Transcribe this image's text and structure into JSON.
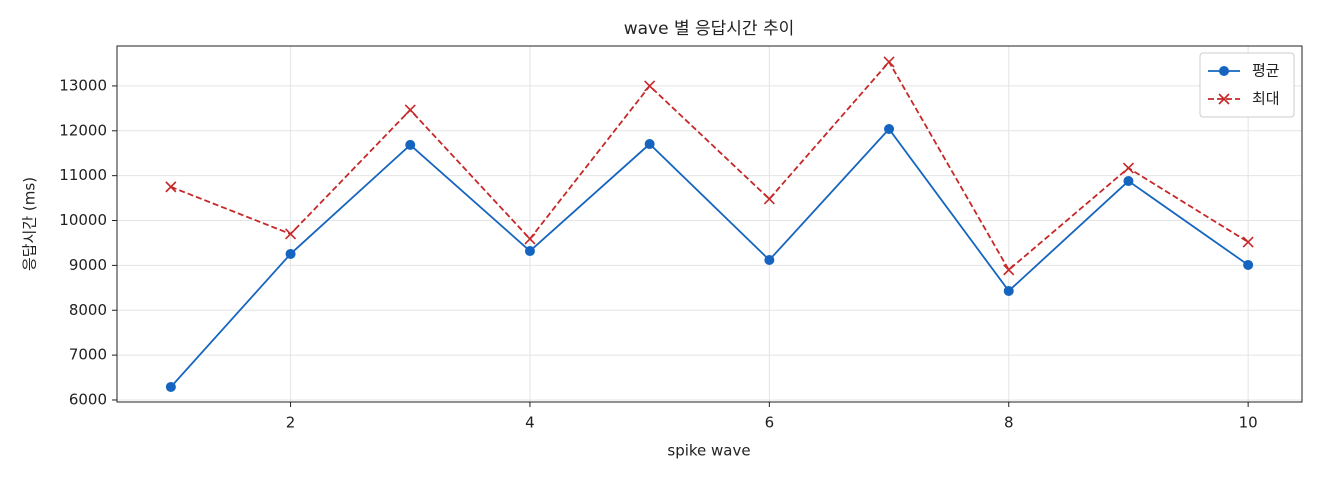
{
  "chart_data": {
    "type": "line",
    "title": "wave 별 응답시간 추이",
    "xlabel": "spike wave",
    "ylabel": "응답시간 (ms)",
    "x": [
      1,
      2,
      3,
      4,
      5,
      6,
      7,
      8,
      9,
      10
    ],
    "series": [
      {
        "name": "평균",
        "color": "#1565c0",
        "linestyle": "solid",
        "marker": "o",
        "values": [
          6290,
          9255,
          11685,
          9320,
          11705,
          9120,
          12040,
          8430,
          10880,
          9010
        ]
      },
      {
        "name": "최대",
        "color": "#c62828",
        "linestyle": "dashed",
        "marker": "x",
        "values": [
          10750,
          9700,
          12465,
          9590,
          13000,
          10480,
          13535,
          8900,
          11170,
          9520
        ]
      }
    ],
    "xlim": [
      0.55,
      10.45
    ],
    "ylim": [
      5955,
      13890
    ],
    "xticks": [
      2,
      4,
      6,
      8,
      10
    ],
    "yticks": [
      6000,
      7000,
      8000,
      9000,
      10000,
      11000,
      12000,
      13000
    ],
    "grid": true,
    "legend": "upper right"
  }
}
